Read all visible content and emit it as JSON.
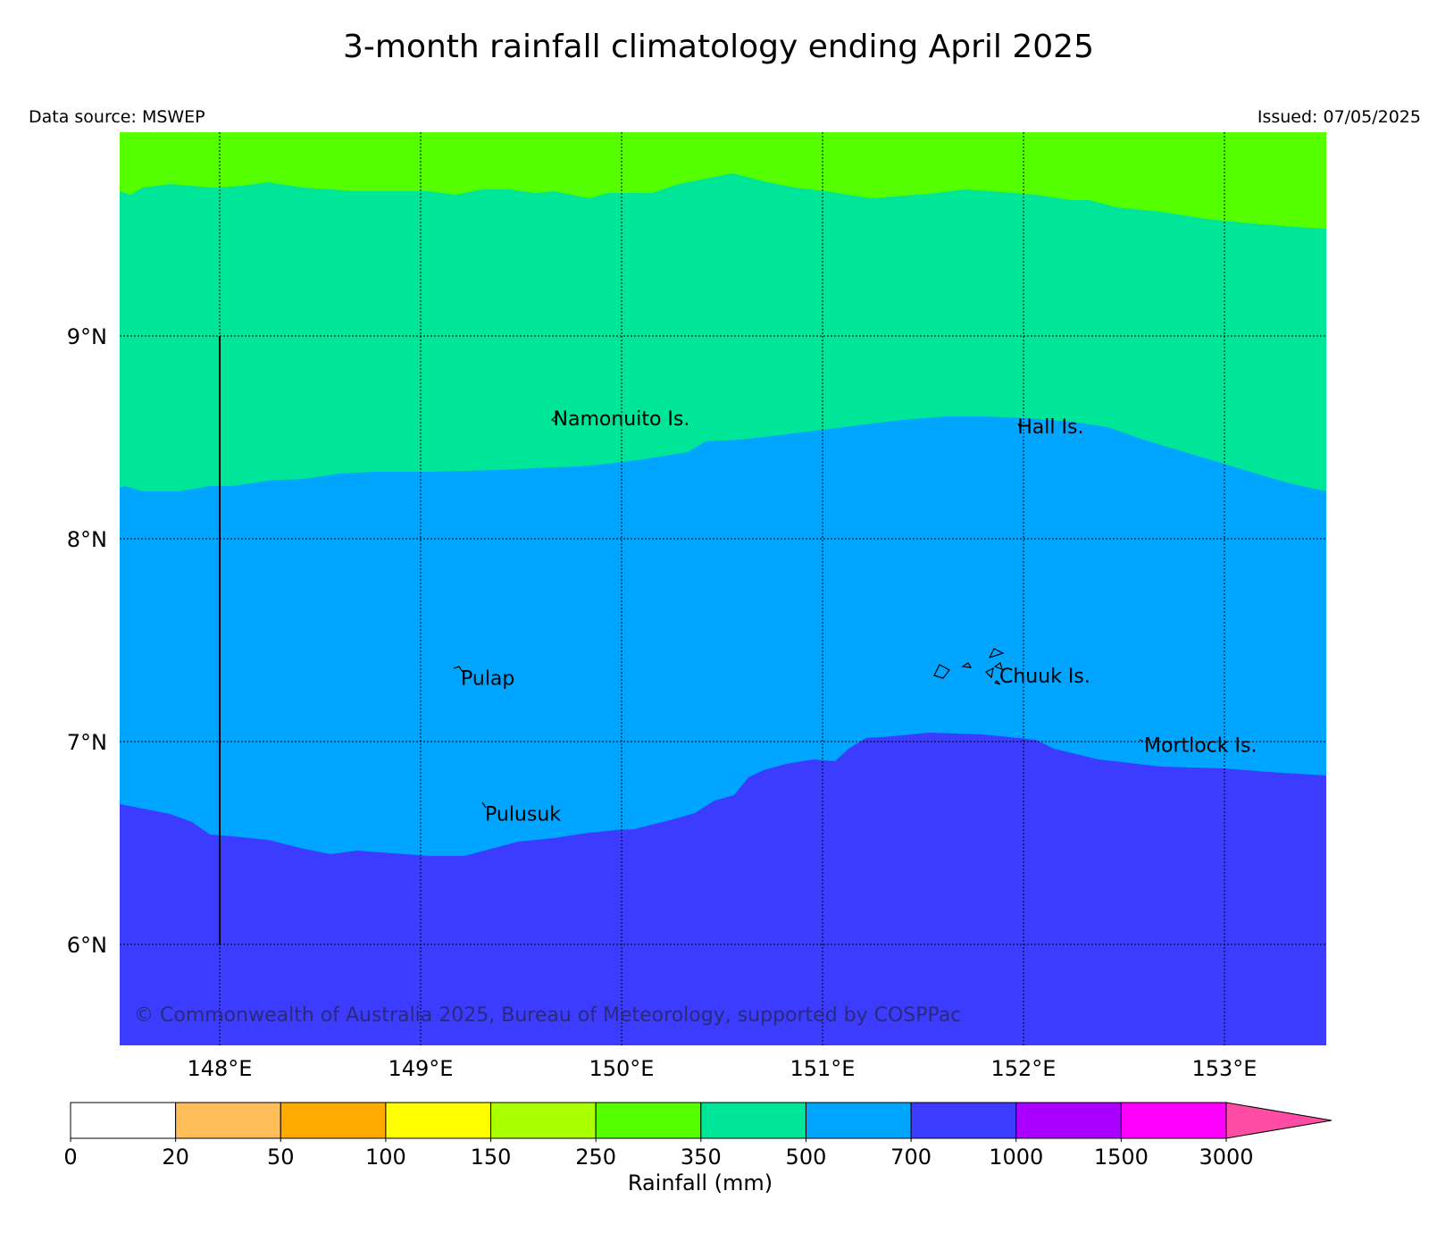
{
  "header": {
    "title": "3-month rainfall climatology ending April 2025",
    "source": "Data source: MSWEP",
    "issued": "Issued: 07/05/2025"
  },
  "map": {
    "lon_ticks": [
      "148°E",
      "149°E",
      "150°E",
      "151°E",
      "152°E",
      "153°E"
    ],
    "lat_ticks": [
      "9°N",
      "8°N",
      "7°N",
      "6°N"
    ],
    "places": [
      {
        "name": "Namonuito Is.",
        "lon": 149.66,
        "lat": 8.56
      },
      {
        "name": "Hall Is.",
        "lon": 151.97,
        "lat": 8.52
      },
      {
        "name": "Pulap",
        "lon": 149.2,
        "lat": 7.28
      },
      {
        "name": "Chuuk Is.",
        "lon": 151.88,
        "lat": 7.29
      },
      {
        "name": "Mortlock Is.",
        "lon": 152.6,
        "lat": 6.95
      },
      {
        "name": "Pulusuk",
        "lon": 149.32,
        "lat": 6.61
      }
    ],
    "copyright": "© Commonwealth of Australia 2025, Bureau of Meteorology, supported by COSPPac",
    "colors": {
      "band_250_350": "#55ff00",
      "band_350_500": "#00e699",
      "band_500_700": "#00a5ff",
      "band_700_1000": "#3c3cff"
    }
  },
  "colorbar": {
    "label": "Rainfall (mm)",
    "levels": [
      "0",
      "20",
      "50",
      "100",
      "150",
      "250",
      "350",
      "500",
      "700",
      "1000",
      "1500",
      "3000"
    ],
    "colors": [
      "#ffffff",
      "#ffbe5a",
      "#ffaa00",
      "#ffff00",
      "#aaff00",
      "#55ff00",
      "#00e699",
      "#00a5ff",
      "#3c3cff",
      "#aa00ff",
      "#ff00ff",
      "#ff4da6"
    ]
  }
}
